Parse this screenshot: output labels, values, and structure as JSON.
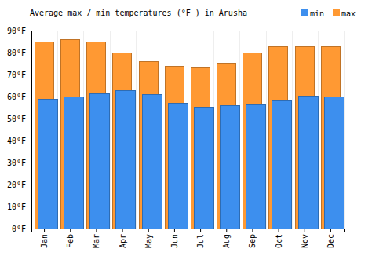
{
  "chart_data": {
    "type": "bar",
    "title": "Average max / min temperatures (°F ) in Arusha",
    "categories": [
      "Jan",
      "Feb",
      "Mar",
      "Apr",
      "May",
      "Jun",
      "Jul",
      "Aug",
      "Sep",
      "Oct",
      "Nov",
      "Dec"
    ],
    "series": [
      {
        "name": "min",
        "color": "#3d8fee",
        "values": [
          59,
          60,
          61.5,
          63,
          61,
          57,
          55.5,
          56,
          56.5,
          58.5,
          60.5,
          60
        ]
      },
      {
        "name": "max",
        "color": "#ff9933",
        "values": [
          85,
          86,
          85,
          80,
          76,
          74,
          73.5,
          75.5,
          80,
          83,
          83,
          83
        ]
      }
    ],
    "ylim": [
      0,
      90
    ],
    "yticks": [
      {
        "value": 0,
        "label": "0°F"
      },
      {
        "value": 10,
        "label": "10°F"
      },
      {
        "value": 20,
        "label": "20°F"
      },
      {
        "value": 30,
        "label": "30°F"
      },
      {
        "value": 40,
        "label": "40°F"
      },
      {
        "value": 50,
        "label": "50°F"
      },
      {
        "value": 60,
        "label": "60°F"
      },
      {
        "value": 70,
        "label": "70°F"
      },
      {
        "value": 80,
        "label": "80°F"
      },
      {
        "value": 90,
        "label": "90°F"
      }
    ],
    "grid": true,
    "legend": "top-right"
  }
}
